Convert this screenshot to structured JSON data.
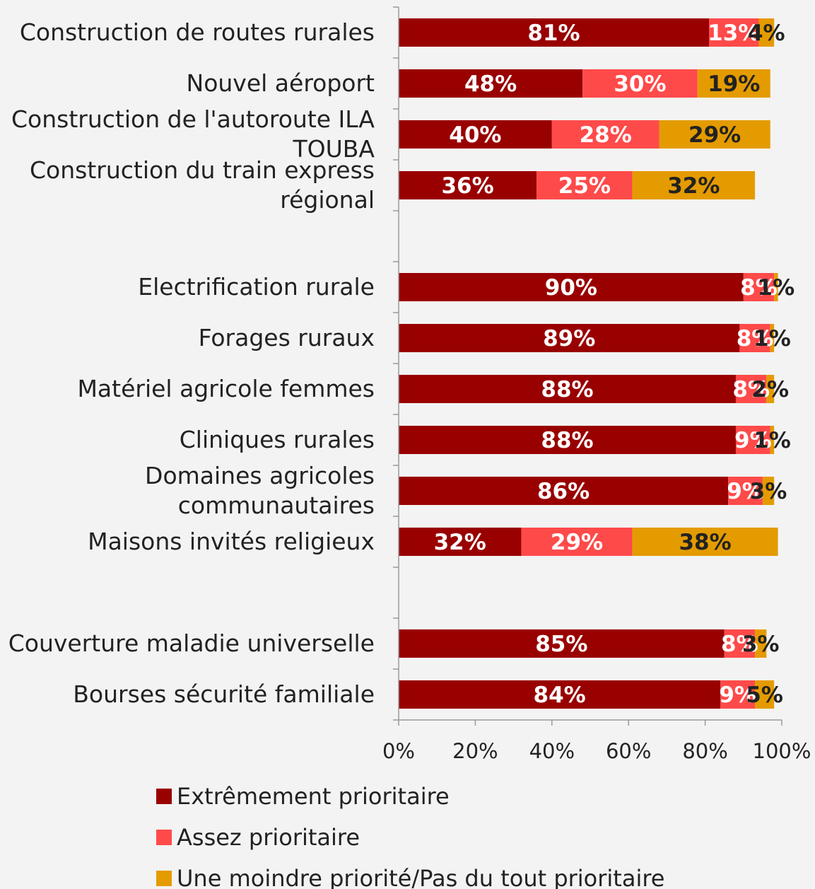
{
  "chart_data": {
    "type": "bar",
    "orientation": "horizontal",
    "stacked": true,
    "categories": [
      "Construction de routes rurales",
      "Nouvel aéroport",
      "Construction de l'autoroute ILA TOUBA",
      "Construction du train express régional",
      "",
      "Electrification rurale",
      "Forages ruraux",
      "Matériel agricole femmes",
      "Cliniques rurales",
      "Domaines agricoles communautaires",
      "Maisons invités religieux",
      "",
      "Couverture maladie universelle",
      "Bourses sécurité familiale"
    ],
    "category_lines": [
      [
        "Construction de routes rurales"
      ],
      [
        "Nouvel aéroport"
      ],
      [
        "Construction de l'autoroute ILA",
        "TOUBA"
      ],
      [
        "Construction du train express",
        "régional"
      ],
      [],
      [
        "Electrification rurale"
      ],
      [
        "Forages ruraux"
      ],
      [
        "Matériel agricole femmes"
      ],
      [
        "Cliniques rurales"
      ],
      [
        "Domaines agricoles",
        "communautaires"
      ],
      [
        "Maisons invités religieux"
      ],
      [],
      [
        "Couverture maladie universelle"
      ],
      [
        "Bourses sécurité familiale"
      ]
    ],
    "series": [
      {
        "name": "Extrêmement prioritaire",
        "color": "#990000",
        "values": [
          81,
          48,
          40,
          36,
          null,
          90,
          89,
          88,
          88,
          86,
          32,
          null,
          85,
          84
        ]
      },
      {
        "name": "Assez prioritaire",
        "color": "#ff4a4a",
        "values": [
          13,
          30,
          28,
          25,
          null,
          8,
          8,
          8,
          9,
          9,
          29,
          null,
          8,
          9
        ]
      },
      {
        "name": "Une moindre priorité/Pas du tout prioritaire",
        "color": "#e49b00",
        "values": [
          4,
          19,
          29,
          32,
          null,
          1,
          1,
          2,
          1,
          3,
          38,
          null,
          3,
          5
        ]
      }
    ],
    "data_label_colors": [
      "#ffffff",
      "#ffffff",
      "#222222"
    ],
    "xlim": [
      0,
      100
    ],
    "xticks": [
      0,
      20,
      40,
      60,
      80,
      100
    ],
    "tick_labels": [
      "0%",
      "20%",
      "40%",
      "60%",
      "80%",
      "100%"
    ],
    "grid": false,
    "legend_position": "bottom"
  }
}
